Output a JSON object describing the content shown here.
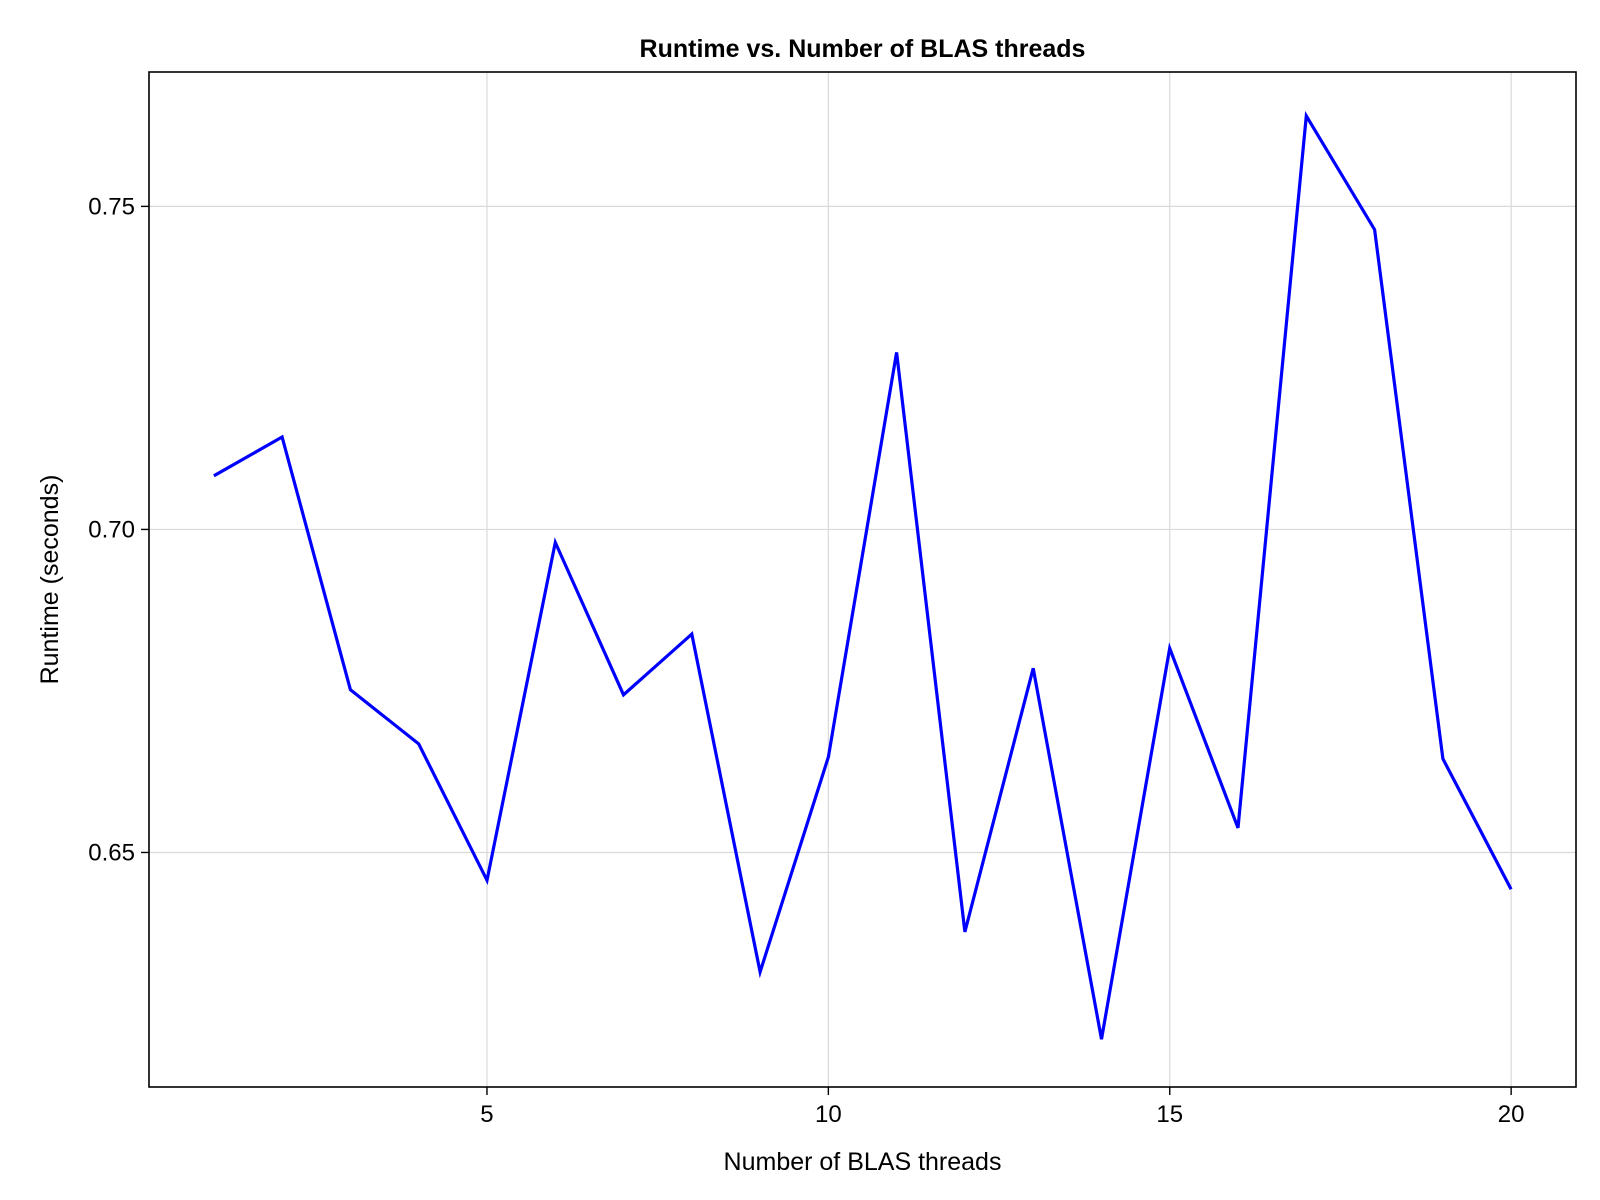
{
  "chart_data": {
    "type": "line",
    "title": "Runtime vs. Number of BLAS threads",
    "xlabel": "Number of BLAS threads",
    "ylabel": "Runtime (seconds)",
    "xlim": [
      0.05,
      20.95
    ],
    "ylim": [
      0.6137,
      0.7708
    ],
    "xticks": [
      5,
      10,
      15,
      20
    ],
    "xtick_labels": [
      "5",
      "10",
      "15",
      "20"
    ],
    "yticks": [
      0.65,
      0.7,
      0.75
    ],
    "ytick_labels": [
      "0.65",
      "0.70",
      "0.75"
    ],
    "grid": true,
    "series": [
      {
        "color": "#0000ff",
        "x": [
          1,
          2,
          3,
          4,
          5,
          6,
          7,
          8,
          9,
          10,
          11,
          12,
          13,
          14,
          15,
          16,
          17,
          18,
          19,
          20
        ],
        "values": [
          0.7083,
          0.7143,
          0.6752,
          0.6668,
          0.6457,
          0.698,
          0.6744,
          0.6838,
          0.6315,
          0.6648,
          0.7274,
          0.6377,
          0.6785,
          0.6211,
          0.6816,
          0.6538,
          0.764,
          0.7464,
          0.6645,
          0.6443
        ]
      }
    ]
  }
}
